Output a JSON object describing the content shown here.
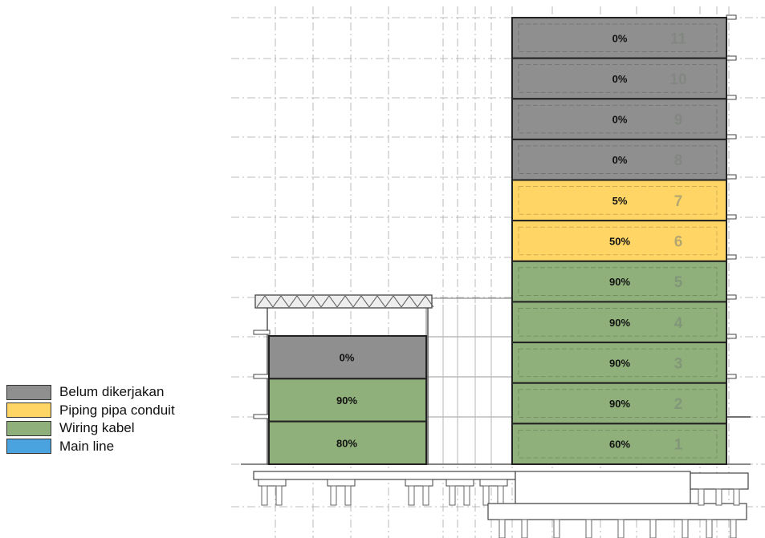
{
  "colors": {
    "not_started": "#8f8f8f",
    "piping": "#ffd666",
    "wiring": "#8fb07a",
    "main_line": "#4aa3df",
    "outline": "#222222",
    "floor_number": "#9aa39a"
  },
  "legend": [
    {
      "label": "Belum dikerjakan",
      "color": "#8f8f8f"
    },
    {
      "label": "Piping pipa conduit",
      "color": "#ffd666"
    },
    {
      "label": "Wiring kabel",
      "color": "#8fb07a"
    },
    {
      "label": "Main line",
      "color": "#4aa3df"
    }
  ],
  "tower": {
    "floors": [
      {
        "number": "11",
        "percent": "0%",
        "status": "not_started"
      },
      {
        "number": "10",
        "percent": "0%",
        "status": "not_started"
      },
      {
        "number": "9",
        "percent": "0%",
        "status": "not_started"
      },
      {
        "number": "8",
        "percent": "0%",
        "status": "not_started"
      },
      {
        "number": "7",
        "percent": "5%",
        "status": "piping"
      },
      {
        "number": "6",
        "percent": "50%",
        "status": "piping"
      },
      {
        "number": "5",
        "percent": "90%",
        "status": "wiring"
      },
      {
        "number": "4",
        "percent": "90%",
        "status": "wiring"
      },
      {
        "number": "3",
        "percent": "90%",
        "status": "wiring"
      },
      {
        "number": "2",
        "percent": "90%",
        "status": "wiring"
      },
      {
        "number": "1",
        "percent": "60%",
        "status": "wiring"
      }
    ]
  },
  "podium": {
    "floors": [
      {
        "percent": "0%",
        "status": "not_started"
      },
      {
        "percent": "90%",
        "status": "wiring"
      },
      {
        "percent": "80%",
        "status": "wiring"
      }
    ]
  }
}
